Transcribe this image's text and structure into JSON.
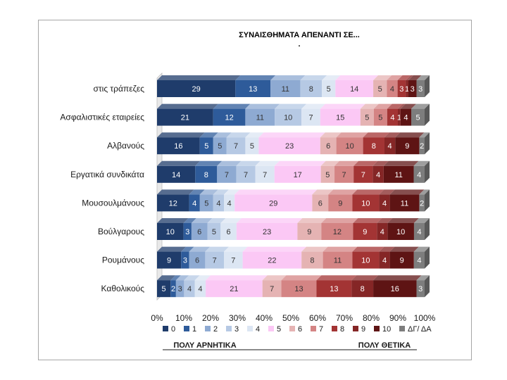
{
  "chart_data": {
    "type": "bar",
    "orientation": "horizontal",
    "stacked": "percent",
    "title": "ΣΥΝΑΙΣΘΗΜΑΤΑ ΑΠΕΝΑΝΤΙ ΣΕ...",
    "subtitle": ".",
    "categories": [
      "στις τράπεζες",
      "Ασφαλιστικές εταιρείες",
      "Αλβανούς",
      "Εργατικά συνδικάτα",
      "Μουσουλμάνους",
      "Βούλγαρους",
      "Ρουμάνους",
      "Καθολικούς"
    ],
    "series": [
      {
        "name": "0",
        "color": "#1f3c6b",
        "values": [
          29,
          21,
          16,
          14,
          12,
          10,
          9,
          5
        ]
      },
      {
        "name": "1",
        "color": "#2e5b9a",
        "values": [
          13,
          12,
          5,
          8,
          4,
          3,
          3,
          2
        ]
      },
      {
        "name": "2",
        "color": "#8eaad2",
        "values": [
          11,
          11,
          5,
          7,
          5,
          6,
          6,
          3
        ]
      },
      {
        "name": "3",
        "color": "#b6c9e4",
        "values": [
          8,
          10,
          7,
          7,
          4,
          5,
          7,
          4
        ]
      },
      {
        "name": "4",
        "color": "#dce6f3",
        "values": [
          5,
          7,
          5,
          7,
          4,
          6,
          7,
          4
        ]
      },
      {
        "name": "5",
        "color": "#fbc8f5",
        "values": [
          14,
          15,
          23,
          17,
          29,
          23,
          22,
          21
        ]
      },
      {
        "name": "6",
        "color": "#e5b3b3",
        "values": [
          5,
          5,
          6,
          5,
          6,
          9,
          8,
          7
        ]
      },
      {
        "name": "7",
        "color": "#d48484",
        "values": [
          4,
          5,
          10,
          7,
          9,
          12,
          11,
          13
        ]
      },
      {
        "name": "8",
        "color": "#a33434",
        "values": [
          3,
          4,
          8,
          7,
          10,
          9,
          10,
          13
        ]
      },
      {
        "name": "9",
        "color": "#852626",
        "values": [
          1,
          1,
          4,
          4,
          4,
          4,
          4,
          8
        ]
      },
      {
        "name": "10",
        "color": "#5e1414",
        "values": [
          3,
          4,
          9,
          11,
          11,
          10,
          9,
          16
        ]
      },
      {
        "name": "ΔΓ/ ΔΑ",
        "color": "#7d7d7d",
        "values": [
          3,
          5,
          2,
          4,
          2,
          4,
          4,
          3
        ]
      }
    ],
    "segment_labels": [
      [
        "29",
        "13",
        "11",
        "8",
        "5",
        "14",
        "5",
        "4",
        "3",
        "1",
        "3",
        "3"
      ],
      [
        "21",
        "12",
        "11",
        "10",
        "7",
        "15",
        "5",
        "5",
        "4",
        "1",
        "4",
        "5"
      ],
      [
        "16",
        "5",
        "5",
        "7",
        "5",
        "23",
        "6",
        "10",
        "8",
        "4",
        "9",
        "2"
      ],
      [
        "14",
        "8",
        "7",
        "7",
        "7",
        "17",
        "5",
        "7",
        "7",
        "4",
        "11",
        "4"
      ],
      [
        "12",
        "4",
        "5",
        "4",
        "4",
        "29",
        "6",
        "9",
        "10",
        "4",
        "11",
        "2"
      ],
      [
        "10",
        "3",
        "6",
        "5",
        "6",
        "23",
        "9",
        "12",
        "9",
        "4",
        "10",
        "4"
      ],
      [
        "9",
        "3",
        "6",
        "7",
        "7",
        "22",
        "8",
        "11",
        "10",
        "4",
        "9",
        "4"
      ],
      [
        "5",
        "2",
        "3",
        "4",
        "4",
        "21",
        "7",
        "13",
        "13",
        "8",
        "16",
        "3"
      ]
    ],
    "x_ticks": [
      "0%",
      "10%",
      "20%",
      "30%",
      "40%",
      "50%",
      "60%",
      "70%",
      "80%",
      "90%",
      "100%"
    ],
    "xlim": [
      0,
      100
    ],
    "legend_position": "bottom",
    "annotations": {
      "left": "ΠΟΛΥ ΑΡΝΗΤΙΚΑ",
      "right": "ΠΟΛΥ ΘΕΤΙΚΑ"
    },
    "grid": false
  }
}
